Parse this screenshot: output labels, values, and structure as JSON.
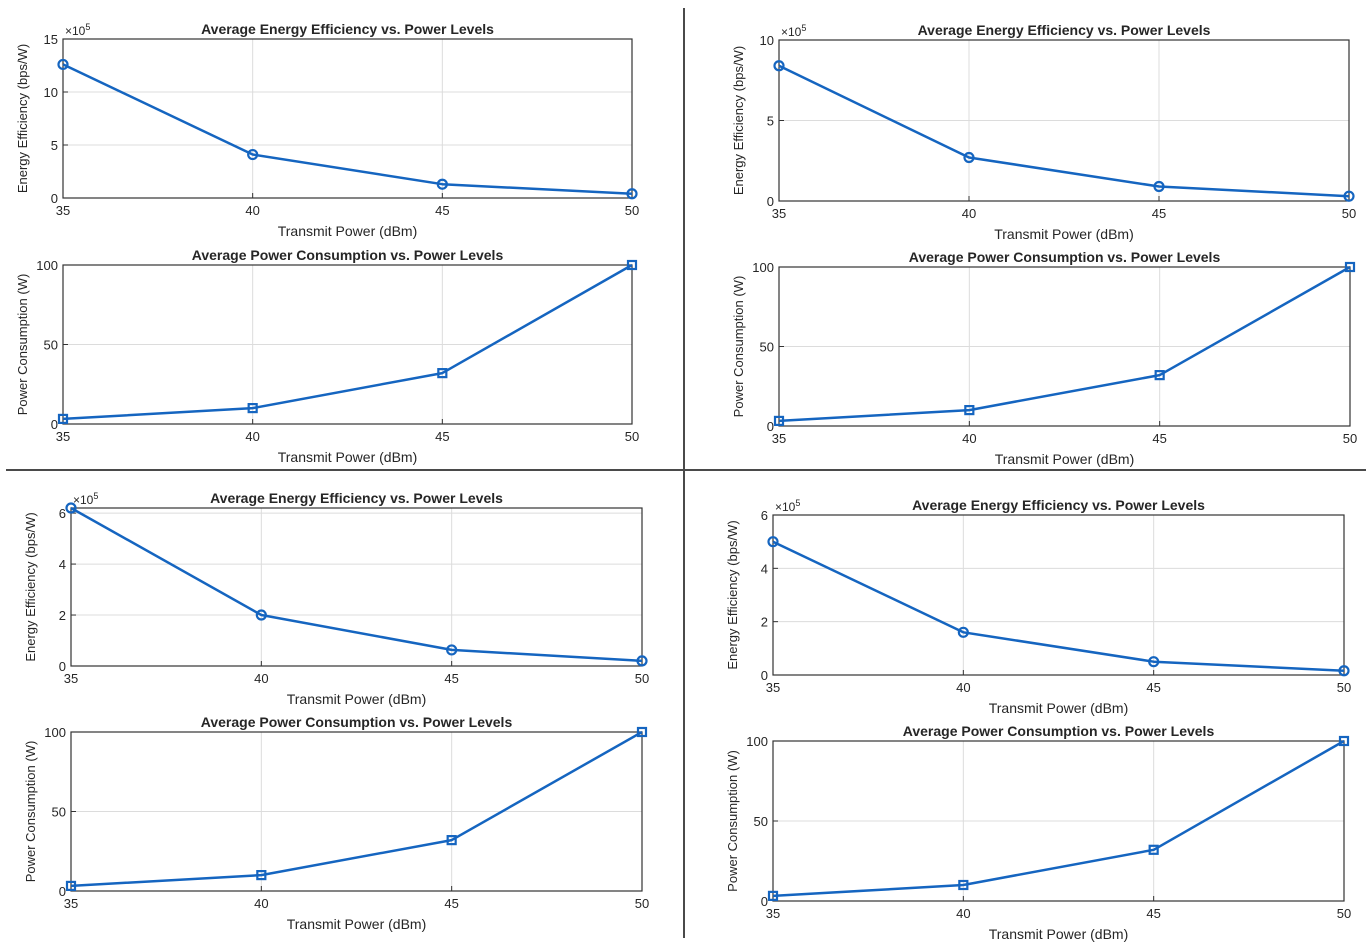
{
  "chart_data": [
    {
      "type": "line",
      "title": "Average Energy Efficiency vs. Power Levels",
      "xlabel": "Transmit Power (dBm)",
      "ylabel": "Energy Efficiency (bps/W)",
      "exponent_label": "×10",
      "exponent_power": "5",
      "x": [
        35,
        40,
        45,
        50
      ],
      "values": [
        12.6,
        4.1,
        1.3,
        0.4
      ],
      "xlim": [
        35,
        50
      ],
      "ylim": [
        0,
        15
      ],
      "xticks": [
        35,
        40,
        45,
        50
      ],
      "yticks": [
        0,
        5,
        10,
        15
      ],
      "grid": true,
      "marker": "circle",
      "color": "#1565C0"
    },
    {
      "type": "line",
      "title": "Average Energy Efficiency vs. Power Levels",
      "xlabel": "Transmit Power (dBm)",
      "ylabel": "Energy Efficiency (bps/W)",
      "exponent_label": "×10",
      "exponent_power": "5",
      "x": [
        35,
        40,
        45,
        50
      ],
      "values": [
        8.4,
        2.7,
        0.9,
        0.3
      ],
      "xlim": [
        35,
        50
      ],
      "ylim": [
        0,
        10
      ],
      "xticks": [
        35,
        40,
        45,
        50
      ],
      "yticks": [
        0,
        5,
        10
      ],
      "grid": true,
      "marker": "circle",
      "color": "#1565C0"
    },
    {
      "type": "line",
      "title": "Average Power Consumption vs. Power Levels",
      "xlabel": "Transmit Power (dBm)",
      "ylabel": "Power Consumption (W)",
      "x": [
        35,
        40,
        45,
        50
      ],
      "values": [
        3.2,
        10,
        32,
        100
      ],
      "xlim": [
        35,
        50
      ],
      "ylim": [
        0,
        100
      ],
      "xticks": [
        35,
        40,
        45,
        50
      ],
      "yticks": [
        0,
        50,
        100
      ],
      "grid": true,
      "marker": "square",
      "color": "#1565C0"
    },
    {
      "type": "line",
      "title": "Average Power Consumption vs. Power Levels",
      "xlabel": "Transmit Power (dBm)",
      "ylabel": "Power Consumption (W)",
      "x": [
        35,
        40,
        45,
        50
      ],
      "values": [
        3.2,
        10,
        32,
        100
      ],
      "xlim": [
        35,
        50
      ],
      "ylim": [
        0,
        100
      ],
      "xticks": [
        35,
        40,
        45,
        50
      ],
      "yticks": [
        0,
        50,
        100
      ],
      "grid": true,
      "marker": "square",
      "color": "#1565C0"
    },
    {
      "type": "line",
      "title": "Average Energy Efficiency vs. Power Levels",
      "xlabel": "Transmit Power (dBm)",
      "ylabel": "Energy Efficiency (bps/W)",
      "exponent_label": "×10",
      "exponent_power": "5",
      "x": [
        35,
        40,
        45,
        50
      ],
      "values": [
        6.2,
        2.0,
        0.63,
        0.2
      ],
      "xlim": [
        35,
        50
      ],
      "ylim": [
        0,
        6.2
      ],
      "xticks": [
        35,
        40,
        45,
        50
      ],
      "yticks": [
        0,
        2,
        4,
        6
      ],
      "grid": true,
      "marker": "circle",
      "color": "#1565C0"
    },
    {
      "type": "line",
      "title": "Average Energy Efficiency vs. Power Levels",
      "xlabel": "Transmit Power (dBm)",
      "ylabel": "Energy Efficiency (bps/W)",
      "exponent_label": "×10",
      "exponent_power": "5",
      "x": [
        35,
        40,
        45,
        50
      ],
      "values": [
        5.0,
        1.6,
        0.5,
        0.16
      ],
      "xlim": [
        35,
        50
      ],
      "ylim": [
        0,
        6
      ],
      "xticks": [
        35,
        40,
        45,
        50
      ],
      "yticks": [
        0,
        2,
        4,
        6
      ],
      "grid": true,
      "marker": "circle",
      "color": "#1565C0"
    },
    {
      "type": "line",
      "title": "Average Power Consumption vs. Power Levels",
      "xlabel": "Transmit Power (dBm)",
      "ylabel": "Power Consumption (W)",
      "x": [
        35,
        40,
        45,
        50
      ],
      "values": [
        3.2,
        10,
        32,
        100
      ],
      "xlim": [
        35,
        50
      ],
      "ylim": [
        0,
        100
      ],
      "xticks": [
        35,
        40,
        45,
        50
      ],
      "yticks": [
        0,
        50,
        100
      ],
      "grid": true,
      "marker": "square",
      "color": "#1565C0"
    },
    {
      "type": "line",
      "title": "Average Power Consumption vs. Power Levels",
      "xlabel": "Transmit Power (dBm)",
      "ylabel": "Power Consumption (W)",
      "x": [
        35,
        40,
        45,
        50
      ],
      "values": [
        3.2,
        10,
        32,
        100
      ],
      "xlim": [
        35,
        50
      ],
      "ylim": [
        0,
        100
      ],
      "xticks": [
        35,
        40,
        45,
        50
      ],
      "yticks": [
        0,
        50,
        100
      ],
      "grid": true,
      "marker": "square",
      "color": "#1565C0"
    }
  ]
}
